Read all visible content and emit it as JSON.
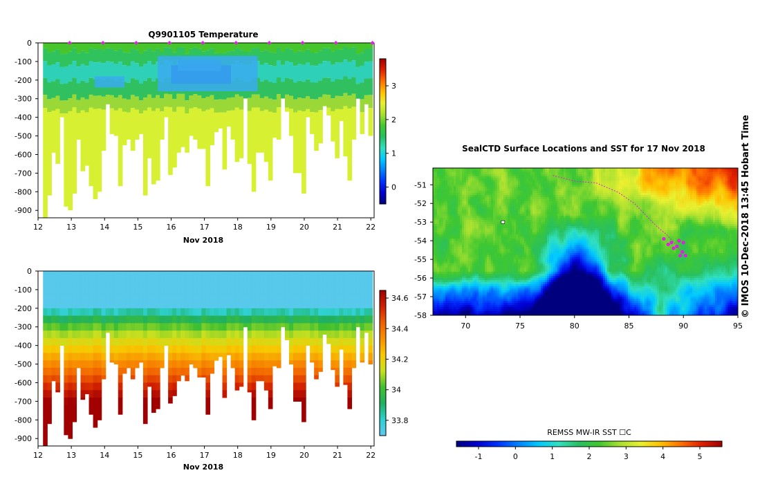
{
  "chart_data": [
    {
      "type": "heatmap",
      "title": "Q9901105  Temperature",
      "xlabel": "Nov 2018",
      "x_ticks": [
        "12",
        "13",
        "14",
        "15",
        "16",
        "17",
        "18",
        "19",
        "20",
        "21",
        "22"
      ],
      "xlim": [
        12,
        22.1
      ],
      "y_ticks": [
        "0",
        "-100",
        "-200",
        "-300",
        "-400",
        "-500",
        "-600",
        "-700",
        "-800",
        "-900"
      ],
      "ylim": [
        -940,
        0
      ],
      "colorbar": {
        "ticks": [
          "0",
          "1",
          "2",
          "3"
        ],
        "range": [
          -0.5,
          3.8
        ]
      },
      "profile_depths": [
        940,
        820,
        590,
        650,
        400,
        880,
        900,
        810,
        520,
        690,
        660,
        770,
        840,
        800,
        580,
        330,
        490,
        500,
        770,
        550,
        520,
        580,
        520,
        490,
        820,
        620,
        760,
        740,
        520,
        400,
        710,
        670,
        590,
        560,
        590,
        500,
        520,
        570,
        570,
        770,
        550,
        480,
        460,
        680,
        450,
        520,
        640,
        620,
        300,
        650,
        800,
        590,
        590,
        640,
        740,
        510,
        520,
        300,
        370,
        500,
        700,
        700,
        810,
        400,
        490,
        580,
        540,
        340,
        390,
        530,
        620,
        420,
        610,
        740,
        520,
        300,
        490,
        330,
        500
      ],
      "cold_band": [
        [
          16.0,
          17.8,
          120,
          220,
          "#1a3fd8"
        ],
        [
          16.2,
          17.5,
          90,
          150,
          "#2a8cec"
        ],
        [
          15.6,
          18.6,
          70,
          260,
          "#3aacf0"
        ],
        [
          13.7,
          14.6,
          180,
          240,
          "#3aacf0"
        ]
      ]
    },
    {
      "type": "heatmap",
      "title": "",
      "xlabel": "Nov 2018",
      "x_ticks": [
        "12",
        "13",
        "14",
        "15",
        "16",
        "17",
        "18",
        "19",
        "20",
        "21",
        "22"
      ],
      "xlim": [
        12,
        22.1
      ],
      "y_ticks": [
        "0",
        "-100",
        "-200",
        "-300",
        "-400",
        "-500",
        "-600",
        "-700",
        "-800",
        "-900"
      ],
      "ylim": [
        -940,
        0
      ],
      "colorbar": {
        "ticks": [
          "33.8",
          "34",
          "34.2",
          "34.4",
          "34.6"
        ],
        "range": [
          33.7,
          34.65
        ]
      }
    },
    {
      "type": "heatmap",
      "title": "SealCTD Surface Locations and SST for 17 Nov 2018",
      "x_ticks": [
        "70",
        "75",
        "80",
        "85",
        "90",
        "95"
      ],
      "xlim": [
        67,
        95
      ],
      "y_ticks": [
        "-51",
        "-52",
        "-53",
        "-54",
        "-55",
        "-56",
        "-57",
        "-58"
      ],
      "ylim": [
        -58,
        -50.1
      ],
      "colorbar": {
        "label": "REMSS MW-IR SST ☐C",
        "ticks": [
          "-1",
          "0",
          "1",
          "2",
          "3",
          "4",
          "5"
        ],
        "range": [
          -1.6,
          5.6
        ]
      },
      "locations": [
        [
          88.2,
          -53.9
        ],
        [
          88.6,
          -54.2
        ],
        [
          89.1,
          -54.4
        ],
        [
          89.6,
          -54.0
        ],
        [
          89.9,
          -54.6
        ],
        [
          90.2,
          -54.8
        ],
        [
          89.7,
          -54.8
        ],
        [
          89.4,
          -54.3
        ],
        [
          88.9,
          -54.1
        ],
        [
          90.0,
          -54.1
        ]
      ],
      "track": [
        [
          78,
          -50.5
        ],
        [
          80,
          -50.8
        ],
        [
          82,
          -50.9
        ],
        [
          84,
          -51.4
        ],
        [
          85.5,
          -52.0
        ],
        [
          86.5,
          -52.6
        ],
        [
          87.5,
          -53.2
        ],
        [
          88.5,
          -53.7
        ],
        [
          89.3,
          -54.2
        ],
        [
          90.0,
          -54.7
        ]
      ],
      "start_marker": [
        73.4,
        -53.0
      ]
    }
  ],
  "side_text": "©  IMOS 10-Dec-2018 13:45 Hobart Time",
  "colors": {
    "jet": [
      "#00007f",
      "#0000d0",
      "#0030ff",
      "#0080ff",
      "#00c8ff",
      "#30e0c0",
      "#28c060",
      "#40c830",
      "#a8e030",
      "#e8f030",
      "#ffc000",
      "#ff7000",
      "#e02000",
      "#a00000"
    ],
    "salinity_ramp": [
      "#60c8f0",
      "#2fd0d0",
      "#20b060",
      "#40c030",
      "#c8e020",
      "#f8c800",
      "#f89000",
      "#f06000",
      "#d02000",
      "#a00000"
    ],
    "marker": "#e020e0"
  }
}
